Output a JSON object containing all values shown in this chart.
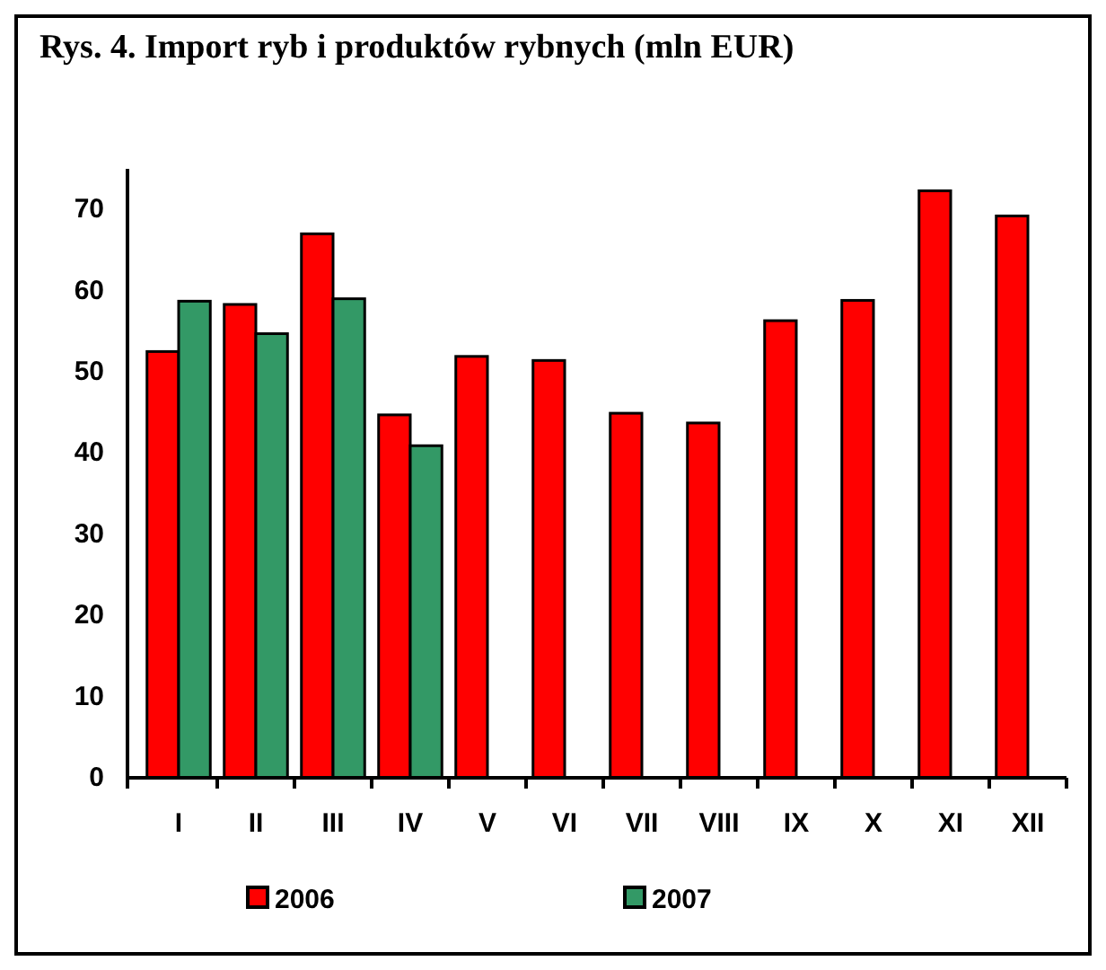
{
  "chart_data": {
    "type": "bar",
    "title": "Rys. 4. Import ryb i produktów rybnych (mln EUR)",
    "categories": [
      "I",
      "II",
      "III",
      "IV",
      "V",
      "VI",
      "VII",
      "VIII",
      "IX",
      "X",
      "XI",
      "XII"
    ],
    "series": [
      {
        "name": "2006",
        "color": "#ff0000",
        "values": [
          52.5,
          58.3,
          67.0,
          44.7,
          51.9,
          51.4,
          44.9,
          43.7,
          56.3,
          58.8,
          72.3,
          69.2
        ]
      },
      {
        "name": "2007",
        "color": "#339966",
        "values": [
          58.7,
          54.7,
          59.0,
          40.9,
          null,
          null,
          null,
          null,
          null,
          null,
          null,
          null
        ]
      }
    ],
    "ylim": [
      0,
      75
    ],
    "yticks": [
      0,
      10,
      20,
      30,
      40,
      50,
      60,
      70
    ],
    "grid": false,
    "legend": "bottom"
  }
}
